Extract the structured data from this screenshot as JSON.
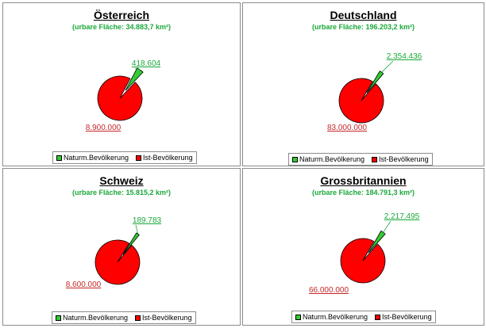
{
  "colors": {
    "natural": "#33cc33",
    "actual": "#ff0000",
    "label_natural": "#1aa83a",
    "label_actual": "#c62828"
  },
  "chart_data": [
    {
      "type": "pie",
      "title": "Österreich",
      "subtitle": "(urbare Fläche: 34.883,7 km²)",
      "slices": [
        {
          "name": "Naturm.Bevölkerung",
          "value": 418604,
          "label": "418.604"
        },
        {
          "name": "Ist-Bevölkerung",
          "value": 8900000,
          "label": "8.900.000"
        }
      ],
      "legend": [
        "Naturm.Bevölkerung",
        "Ist-Bevölkerung"
      ],
      "legend_position": "bottom"
    },
    {
      "type": "pie",
      "title": "Deutschland",
      "subtitle": "(urbare Fläche: 196.203,2 km²)",
      "slices": [
        {
          "name": "Naturm.Bevölkerung",
          "value": 2354436,
          "label": "2.354.436"
        },
        {
          "name": "Ist-Bevölkerung",
          "value": 83000000,
          "label": "83.000.000"
        }
      ],
      "legend": [
        "Naturm.Bevölkerung",
        "Ist-Bevölkerung"
      ],
      "legend_position": "bottom"
    },
    {
      "type": "pie",
      "title": "Schweiz",
      "subtitle": "(urbare Fläche: 15.815,2 km²)",
      "slices": [
        {
          "name": "Naturm.Bevölkerung",
          "value": 189783,
          "label": "189.783"
        },
        {
          "name": "Ist-Bevölkerung",
          "value": 8600000,
          "label": "8.600.000"
        }
      ],
      "legend": [
        "Naturm.Bevölkerung",
        "Ist-Bevölkerung"
      ],
      "legend_position": "bottom"
    },
    {
      "type": "pie",
      "title": "Grossbritannien",
      "subtitle": "(urbare Fläche: 184.791,3 km²)",
      "slices": [
        {
          "name": "Naturm.Bevölkerung",
          "value": 2217495,
          "label": "2.217.495"
        },
        {
          "name": "Ist-Bevölkerung",
          "value": 66000000,
          "label": "66.000.000"
        }
      ],
      "legend": [
        "Naturm.Bevölkerung",
        "Ist-Bevölkerung"
      ],
      "legend_position": "bottom"
    }
  ]
}
